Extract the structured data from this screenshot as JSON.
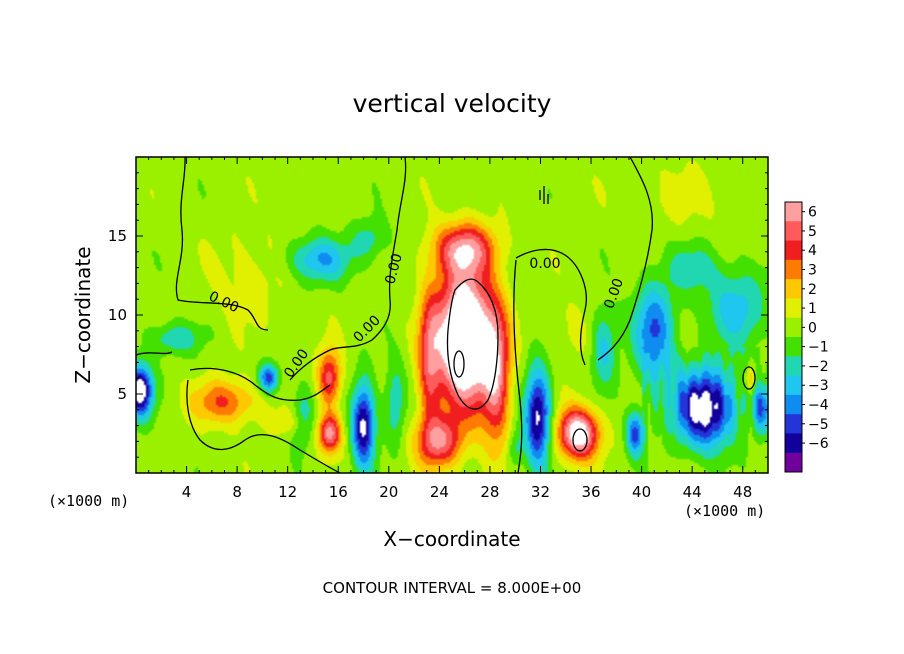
{
  "chart_data": {
    "type": "heatmap",
    "title": "vertical velocity",
    "xlabel": "X−coordinate",
    "ylabel": "Z−coordinate",
    "x_unit_left": "(×1000 m)",
    "x_unit_right": "(×1000 m)",
    "xlim": [
      0,
      50
    ],
    "ylim": [
      0,
      20
    ],
    "xticks": [
      4,
      8,
      12,
      16,
      20,
      24,
      28,
      32,
      36,
      40,
      44,
      48
    ],
    "xtick_labels": [
      "4",
      "8",
      "12",
      "16",
      "20",
      "24",
      "28",
      "32",
      "36",
      "40",
      "44",
      "48"
    ],
    "yticks": [
      5,
      10,
      15
    ],
    "ytick_labels": [
      "5",
      "10",
      "15"
    ],
    "colorbar": {
      "levels": [
        6,
        5,
        4,
        3,
        2,
        1,
        0,
        -1,
        -2,
        -3,
        -4,
        -5,
        -6
      ],
      "labels": [
        "6",
        "5",
        "4",
        "3",
        "2",
        "1",
        "0",
        "−1",
        "−2",
        "−3",
        "−4",
        "−5",
        "−6"
      ],
      "colors": [
        "#ff9f9f",
        "#ff5b5b",
        "#f01e1e",
        "#ff7a00",
        "#ffc800",
        "#e1f000",
        "#9bf000",
        "#44e000",
        "#21d7b2",
        "#1fc6ee",
        "#0f8cef",
        "#2335d8",
        "#12009c",
        "#70009c"
      ]
    },
    "contour_labels": [
      "0.00",
      "0.00",
      "0.00",
      "0.00",
      "0.00",
      "0.00"
    ],
    "contour_interval_text": "CONTOUR INTERVAL = 8.000E+00",
    "features": [
      {
        "x": 26.0,
        "z": 8.5,
        "amp": 11,
        "sx": 2.2,
        "sz": 4.2
      },
      {
        "x": 26.0,
        "z": 14.2,
        "amp": 5,
        "sx": 2.4,
        "sz": 1.6
      },
      {
        "x": 28.5,
        "z": 6.0,
        "amp": 5,
        "sx": 1.1,
        "sz": 4.5
      },
      {
        "x": 23.2,
        "z": 7.0,
        "amp": 4,
        "sx": 0.9,
        "sz": 4.5
      },
      {
        "x": 24.0,
        "z": 2.0,
        "amp": 5,
        "sx": 1.8,
        "sz": 1.6
      },
      {
        "x": 35.0,
        "z": 2.5,
        "amp": 8,
        "sx": 1.6,
        "sz": 1.6
      },
      {
        "x": 7.0,
        "z": 4.5,
        "amp": 3.5,
        "sx": 2.6,
        "sz": 1.4
      },
      {
        "x": 15.3,
        "z": 2.5,
        "amp": 6,
        "sx": 0.9,
        "sz": 1.2
      },
      {
        "x": 15.3,
        "z": 6.0,
        "amp": 5,
        "sx": 0.9,
        "sz": 1.8
      },
      {
        "x": 12.0,
        "z": 3.2,
        "amp": 1.5,
        "sx": 1.5,
        "sz": 0.8
      },
      {
        "x": 9.0,
        "z": 12.5,
        "amp": 1,
        "sx": 3.0,
        "sz": 3.0
      },
      {
        "x": 34.5,
        "z": 9.0,
        "amp": 0.8,
        "sx": 2.0,
        "sz": 2.0
      },
      {
        "x": 43.0,
        "z": 17.5,
        "amp": 0.8,
        "sx": 4.0,
        "sz": 2.0
      },
      {
        "x": 48.6,
        "z": 6.0,
        "amp": 2.5,
        "sx": 0.5,
        "sz": 0.8
      },
      {
        "x": 0.3,
        "z": 5.2,
        "amp": -8,
        "sx": 1.0,
        "sz": 1.6
      },
      {
        "x": 3.0,
        "z": 8.5,
        "amp": -2.5,
        "sx": 2.0,
        "sz": 1.0
      },
      {
        "x": 14.5,
        "z": 13.5,
        "amp": -3.5,
        "sx": 2.5,
        "sz": 1.4
      },
      {
        "x": 18.5,
        "z": 14.8,
        "amp": -2,
        "sx": 1.4,
        "sz": 1.3
      },
      {
        "x": 10.5,
        "z": 6.0,
        "amp": -5,
        "sx": 0.8,
        "sz": 0.9
      },
      {
        "x": 13.2,
        "z": 3.5,
        "amp": -2.5,
        "sx": 0.9,
        "sz": 1.8
      },
      {
        "x": 18.0,
        "z": 3.0,
        "amp": -7,
        "sx": 0.9,
        "sz": 2.6
      },
      {
        "x": 20.5,
        "z": 4.5,
        "amp": -2.5,
        "sx": 0.8,
        "sz": 2.5
      },
      {
        "x": 31.8,
        "z": 3.5,
        "amp": -7,
        "sx": 1.0,
        "sz": 3.0
      },
      {
        "x": 30.0,
        "z": 1.5,
        "amp": -2,
        "sx": 0.6,
        "sz": 1.2
      },
      {
        "x": 37.0,
        "z": 8.0,
        "amp": -3,
        "sx": 1.0,
        "sz": 2.5
      },
      {
        "x": 39.5,
        "z": 2.5,
        "amp": -5,
        "sx": 0.7,
        "sz": 1.4
      },
      {
        "x": 41.0,
        "z": 9.0,
        "amp": -4.5,
        "sx": 1.6,
        "sz": 3.0
      },
      {
        "x": 45.0,
        "z": 4.0,
        "amp": -7,
        "sx": 2.2,
        "sz": 2.4
      },
      {
        "x": 47.5,
        "z": 10.5,
        "amp": -3,
        "sx": 2.4,
        "sz": 2.5
      },
      {
        "x": 44.0,
        "z": 13.0,
        "amp": -2,
        "sx": 2.0,
        "sz": 1.5
      },
      {
        "x": 49.5,
        "z": 4.0,
        "amp": -4,
        "sx": 0.6,
        "sz": 1.5
      }
    ]
  }
}
